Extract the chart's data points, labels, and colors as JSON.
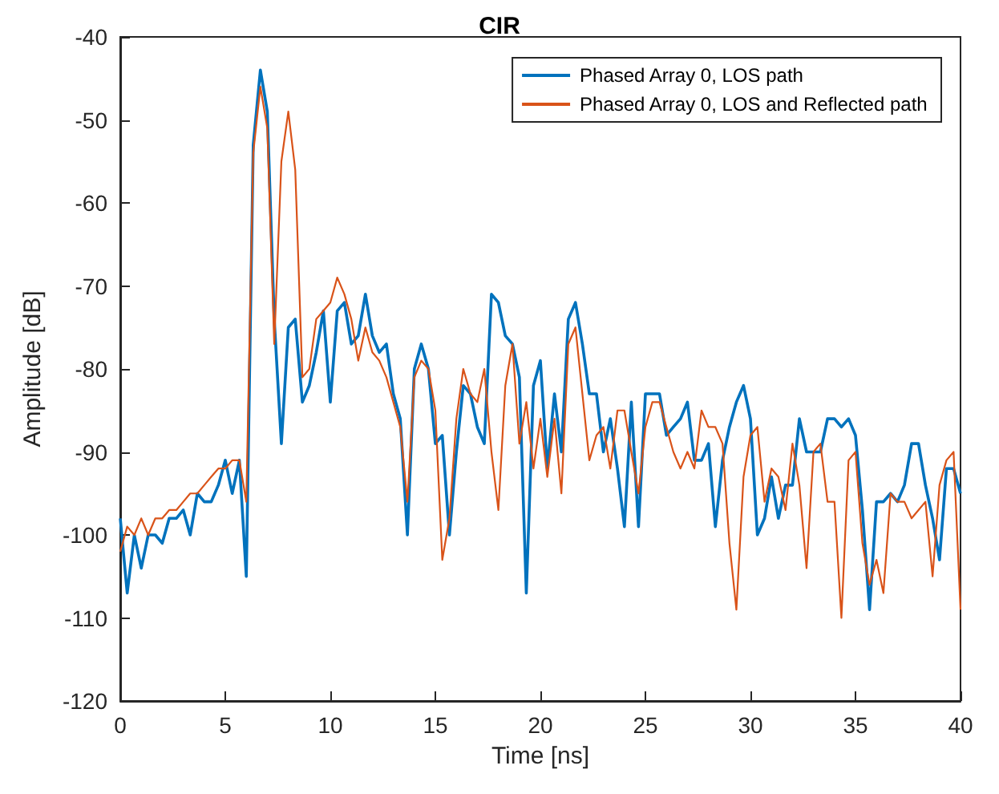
{
  "chart_data": {
    "type": "line",
    "title": "CIR",
    "xlabel": "Time [ns]",
    "ylabel": "Amplitude [dB]",
    "x": [
      0,
      0.33,
      0.67,
      1,
      1.33,
      1.67,
      2,
      2.33,
      2.67,
      3,
      3.33,
      3.67,
      4,
      4.33,
      4.67,
      5,
      5.33,
      5.67,
      6,
      6.33,
      6.67,
      7,
      7.33,
      7.67,
      8,
      8.33,
      8.67,
      9,
      9.33,
      9.67,
      10,
      10.33,
      10.67,
      11,
      11.33,
      11.67,
      12,
      12.33,
      12.67,
      13,
      13.33,
      13.67,
      14,
      14.33,
      14.67,
      15,
      15.33,
      15.67,
      16,
      16.33,
      16.67,
      17,
      17.33,
      17.67,
      18,
      18.33,
      18.67,
      19,
      19.33,
      19.67,
      20,
      20.33,
      20.67,
      21,
      21.33,
      21.67,
      22,
      22.33,
      22.67,
      23,
      23.33,
      23.67,
      24,
      24.33,
      24.67,
      25,
      25.33,
      25.67,
      26,
      26.33,
      26.67,
      27,
      27.33,
      27.67,
      28,
      28.33,
      28.67,
      29,
      29.33,
      29.67,
      30,
      30.33,
      30.67,
      31,
      31.33,
      31.67,
      32,
      32.33,
      32.67,
      33,
      33.33,
      33.67,
      34,
      34.33,
      34.67,
      35,
      35.33,
      35.67,
      36,
      36.33,
      36.67,
      37,
      37.33,
      37.67,
      38,
      38.33,
      38.67,
      39,
      39.33,
      39.67,
      40
    ],
    "series": [
      {
        "name": "Phased Array 0, LOS path",
        "color": "#0072bd",
        "values": [
          -98,
          -107,
          -100,
          -104,
          -100,
          -100,
          -101,
          -98,
          -98,
          -97,
          -100,
          -95,
          -96,
          -96,
          -94,
          -91,
          -95,
          -91,
          -105,
          -53,
          -44,
          -49,
          -74,
          -89,
          -75,
          -74,
          -84,
          -82,
          -78,
          -73,
          -84,
          -73,
          -72,
          -77,
          -76,
          -71,
          -76,
          -78,
          -77,
          -83,
          -86,
          -100,
          -80,
          -77,
          -80,
          -89,
          -88,
          -100,
          -90,
          -82,
          -83,
          -87,
          -89,
          -71,
          -72,
          -76,
          -77,
          -81,
          -107,
          -82,
          -79,
          -92,
          -83,
          -90,
          -74,
          -72,
          -77,
          -83,
          -83,
          -90,
          -86,
          -92,
          -99,
          -84,
          -99,
          -83,
          -83,
          -83,
          -88,
          -87,
          -86,
          -84,
          -91,
          -91,
          -89,
          -99,
          -91,
          -87,
          -84,
          -82,
          -86,
          -100,
          -98,
          -93,
          -98,
          -94,
          -94,
          -86,
          -90,
          -90,
          -90,
          -86,
          -86,
          -87,
          -86,
          -88,
          -97,
          -109,
          -96,
          -96,
          -95,
          -96,
          -94,
          -89,
          -89,
          -94,
          -98,
          -103,
          -92,
          -92,
          -95
        ]
      },
      {
        "name": "Phased Array 0, LOS and Reflected path",
        "color": "#d95319",
        "values": [
          -102,
          -99,
          -100,
          -98,
          -100,
          -98,
          -98,
          -97,
          -97,
          -96,
          -95,
          -95,
          -94,
          -93,
          -92,
          -92,
          -91,
          -91,
          -96,
          -54,
          -46,
          -51,
          -77,
          -55,
          -49,
          -56,
          -81,
          -80,
          -74,
          -73,
          -72,
          -69,
          -71,
          -74,
          -79,
          -75,
          -78,
          -79,
          -81,
          -84,
          -87,
          -96,
          -81,
          -79,
          -80,
          -85,
          -103,
          -98,
          -86,
          -80,
          -83,
          -84,
          -80,
          -90,
          -97,
          -82,
          -77,
          -89,
          -84,
          -92,
          -86,
          -93,
          -86,
          -95,
          -77,
          -75,
          -83,
          -91,
          -88,
          -87,
          -92,
          -85,
          -85,
          -90,
          -95,
          -87,
          -84,
          -84,
          -87,
          -90,
          -92,
          -90,
          -92,
          -85,
          -87,
          -87,
          -89,
          -101,
          -109,
          -93,
          -88,
          -87,
          -96,
          -92,
          -93,
          -97,
          -89,
          -94,
          -104,
          -90,
          -89,
          -96,
          -96,
          -110,
          -91,
          -90,
          -101,
          -106,
          -103,
          -107,
          -95,
          -96,
          -96,
          -98,
          -97,
          -96,
          -105,
          -94,
          -91,
          -90,
          -109
        ]
      }
    ],
    "xlim": [
      0,
      40
    ],
    "xticks": [
      0,
      5,
      10,
      15,
      20,
      25,
      30,
      35,
      40
    ],
    "ylim": [
      -120,
      -40
    ],
    "yticks": [
      -120,
      -110,
      -100,
      -90,
      -80,
      -70,
      -60,
      -50,
      -40
    ],
    "grid": false,
    "legend": "top right",
    "marker": "none",
    "line_style": "solid"
  }
}
